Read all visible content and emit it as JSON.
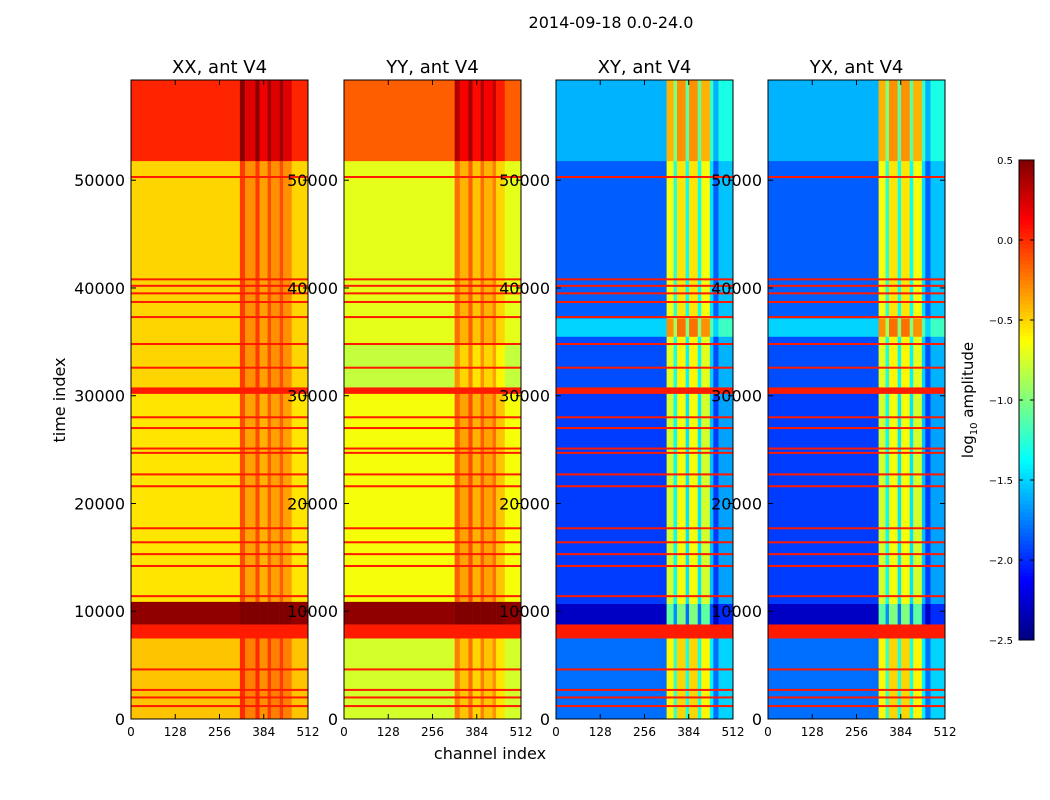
{
  "suptitle": "2014-09-18 0.0-24.0",
  "chart_data": {
    "type": "heatmap",
    "xlabel": "channel index",
    "ylabel": "time index",
    "xlim": [
      0,
      512
    ],
    "ylim": [
      0,
      59300
    ],
    "xticks": [
      "0",
      "128",
      "256",
      "384",
      "512"
    ],
    "xtick_values": [
      0,
      128,
      256,
      384,
      512
    ],
    "yticks": [
      "0",
      "10000",
      "20000",
      "30000",
      "40000",
      "50000"
    ],
    "ytick_values": [
      0,
      10000,
      20000,
      30000,
      40000,
      50000
    ],
    "colorbar": {
      "label": "log10 amplitude",
      "label_base": "log",
      "label_sub": "10",
      "label_rest": " amplitude",
      "colormap": "jet",
      "vmin": -2.5,
      "vmax": 0.5,
      "ticks": [
        "0.5",
        "0.0",
        "−0.5",
        "−1.0",
        "−1.5",
        "−2.0",
        "−2.5"
      ],
      "tick_values": [
        0.5,
        0.0,
        -0.5,
        -1.0,
        -1.5,
        -2.0,
        -2.5
      ]
    },
    "flag_rows": [
      1200,
      2000,
      2700,
      4600,
      11400,
      14200,
      15300,
      16400,
      17700,
      21600,
      22700,
      24700,
      25100,
      27000,
      28000,
      32600,
      34800,
      37300,
      38700,
      39500,
      40200,
      40800,
      50300
    ],
    "flag_value": 0.05,
    "panels": [
      {
        "title": "XX, ant V4",
        "time_segments": [
          [
            0,
            7500,
            -0.45
          ],
          [
            7500,
            8800,
            0.05
          ],
          [
            8800,
            10900,
            0.45
          ],
          [
            10900,
            30200,
            -0.55
          ],
          [
            30200,
            30800,
            0.05
          ],
          [
            30800,
            51800,
            -0.5
          ],
          [
            51800,
            59300,
            0.02
          ]
        ],
        "channel_modifiers": [
          [
            315,
            330,
            0.45
          ],
          [
            330,
            360,
            0.2
          ],
          [
            360,
            372,
            0.45
          ],
          [
            372,
            395,
            0.15
          ],
          [
            395,
            405,
            0.4
          ],
          [
            405,
            430,
            0.2
          ],
          [
            430,
            440,
            0.4
          ],
          [
            440,
            465,
            0.2
          ]
        ]
      },
      {
        "title": "YY, ant V4",
        "time_segments": [
          [
            0,
            7500,
            -0.75
          ],
          [
            7500,
            8800,
            0.05
          ],
          [
            8800,
            10900,
            0.45
          ],
          [
            10900,
            30200,
            -0.65
          ],
          [
            30200,
            30800,
            0.05
          ],
          [
            30800,
            34800,
            -0.8
          ],
          [
            34800,
            51800,
            -0.7
          ],
          [
            51800,
            59300,
            -0.15
          ]
        ],
        "channel_modifiers": [
          [
            320,
            335,
            0.5
          ],
          [
            335,
            360,
            0.3
          ],
          [
            360,
            372,
            0.55
          ],
          [
            372,
            395,
            0.25
          ],
          [
            395,
            405,
            0.5
          ],
          [
            405,
            430,
            0.3
          ],
          [
            430,
            440,
            0.45
          ],
          [
            440,
            465,
            0.2
          ]
        ]
      },
      {
        "title": "XY, ant V4",
        "time_segments": [
          [
            0,
            7500,
            -1.8
          ],
          [
            7500,
            8800,
            0.05
          ],
          [
            8800,
            10700,
            -2.3
          ],
          [
            10700,
            30200,
            -1.95
          ],
          [
            30200,
            30800,
            0.05
          ],
          [
            30800,
            35500,
            -1.9
          ],
          [
            35500,
            37200,
            -1.5
          ],
          [
            37200,
            51800,
            -1.85
          ],
          [
            51800,
            59300,
            -1.6
          ]
        ],
        "channel_modifiers": [
          [
            320,
            340,
            1.2
          ],
          [
            340,
            350,
            0.6
          ],
          [
            350,
            375,
            1.3
          ],
          [
            375,
            385,
            0.5
          ],
          [
            385,
            410,
            1.3
          ],
          [
            410,
            420,
            0.5
          ],
          [
            420,
            445,
            1.2
          ],
          [
            445,
            455,
            0.4
          ],
          [
            470,
            512,
            0.3
          ]
        ]
      },
      {
        "title": "YX, ant V4",
        "time_segments": [
          [
            0,
            7500,
            -1.8
          ],
          [
            7500,
            8800,
            0.05
          ],
          [
            8800,
            10700,
            -2.3
          ],
          [
            10700,
            30200,
            -1.95
          ],
          [
            30200,
            30800,
            0.05
          ],
          [
            30800,
            35500,
            -1.9
          ],
          [
            35500,
            37200,
            -1.5
          ],
          [
            37200,
            51800,
            -1.85
          ],
          [
            51800,
            59300,
            -1.6
          ]
        ],
        "channel_modifiers": [
          [
            320,
            340,
            1.2
          ],
          [
            340,
            350,
            0.6
          ],
          [
            350,
            375,
            1.3
          ],
          [
            375,
            385,
            0.5
          ],
          [
            385,
            410,
            1.3
          ],
          [
            410,
            420,
            0.5
          ],
          [
            420,
            445,
            1.2
          ],
          [
            445,
            455,
            0.4
          ],
          [
            470,
            512,
            0.3
          ]
        ]
      }
    ]
  }
}
